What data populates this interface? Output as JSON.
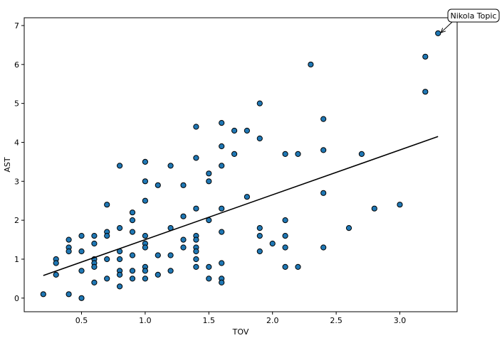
{
  "chart_data": {
    "type": "scatter",
    "title": "",
    "xlabel": "TOV",
    "ylabel": "AST",
    "xlim": [
      0.05,
      3.45
    ],
    "ylim": [
      -0.35,
      7.2
    ],
    "xticks": [
      0.5,
      1.0,
      1.5,
      2.0,
      2.5,
      3.0
    ],
    "xtick_labels": [
      "0.5",
      "1.0",
      "1.5",
      "2.0",
      "2.5",
      "3.0"
    ],
    "yticks": [
      0,
      1,
      2,
      3,
      4,
      5,
      6,
      7
    ],
    "ytick_labels": [
      "0",
      "1",
      "2",
      "3",
      "4",
      "5",
      "6",
      "7"
    ],
    "grid": false,
    "point_color": "#1f77b4",
    "point_edge_color": "#000000",
    "line_color": "#000000",
    "points": [
      [
        0.2,
        0.1
      ],
      [
        0.3,
        1.0
      ],
      [
        0.3,
        0.9
      ],
      [
        0.3,
        0.6
      ],
      [
        0.4,
        1.5
      ],
      [
        0.4,
        1.3
      ],
      [
        0.4,
        1.2
      ],
      [
        0.4,
        0.1
      ],
      [
        0.5,
        1.6
      ],
      [
        0.5,
        1.2
      ],
      [
        0.5,
        0.7
      ],
      [
        0.5,
        0.0
      ],
      [
        0.6,
        1.6
      ],
      [
        0.6,
        1.4
      ],
      [
        0.6,
        1.0
      ],
      [
        0.6,
        0.9
      ],
      [
        0.6,
        0.8
      ],
      [
        0.6,
        0.4
      ],
      [
        0.7,
        2.4
      ],
      [
        0.7,
        1.7
      ],
      [
        0.7,
        1.6
      ],
      [
        0.7,
        1.0
      ],
      [
        0.7,
        0.5
      ],
      [
        0.8,
        3.4
      ],
      [
        0.8,
        1.8
      ],
      [
        0.8,
        1.2
      ],
      [
        0.8,
        1.0
      ],
      [
        0.8,
        0.7
      ],
      [
        0.8,
        0.6
      ],
      [
        0.8,
        0.3
      ],
      [
        0.9,
        2.2
      ],
      [
        0.9,
        2.0
      ],
      [
        0.9,
        1.7
      ],
      [
        0.9,
        1.1
      ],
      [
        0.9,
        0.7
      ],
      [
        0.9,
        0.5
      ],
      [
        1.0,
        3.5
      ],
      [
        1.0,
        3.0
      ],
      [
        1.0,
        2.5
      ],
      [
        1.0,
        1.6
      ],
      [
        1.0,
        1.4
      ],
      [
        1.0,
        1.3
      ],
      [
        1.0,
        0.8
      ],
      [
        1.0,
        0.7
      ],
      [
        1.0,
        0.5
      ],
      [
        1.1,
        2.9
      ],
      [
        1.1,
        1.1
      ],
      [
        1.1,
        0.6
      ],
      [
        1.2,
        3.4
      ],
      [
        1.2,
        1.8
      ],
      [
        1.2,
        1.1
      ],
      [
        1.2,
        0.7
      ],
      [
        1.3,
        2.9
      ],
      [
        1.3,
        2.1
      ],
      [
        1.3,
        1.5
      ],
      [
        1.3,
        1.3
      ],
      [
        1.4,
        4.4
      ],
      [
        1.4,
        3.6
      ],
      [
        1.4,
        2.3
      ],
      [
        1.4,
        1.6
      ],
      [
        1.4,
        1.5
      ],
      [
        1.4,
        1.3
      ],
      [
        1.4,
        1.2
      ],
      [
        1.4,
        1.0
      ],
      [
        1.4,
        0.8
      ],
      [
        1.5,
        3.2
      ],
      [
        1.5,
        3.0
      ],
      [
        1.5,
        2.0
      ],
      [
        1.5,
        0.8
      ],
      [
        1.5,
        0.5
      ],
      [
        1.6,
        4.5
      ],
      [
        1.6,
        3.9
      ],
      [
        1.6,
        3.4
      ],
      [
        1.6,
        2.3
      ],
      [
        1.6,
        1.7
      ],
      [
        1.6,
        0.9
      ],
      [
        1.6,
        0.5
      ],
      [
        1.6,
        0.4
      ],
      [
        1.7,
        4.3
      ],
      [
        1.7,
        3.7
      ],
      [
        1.8,
        4.3
      ],
      [
        1.8,
        2.6
      ],
      [
        1.9,
        5.0
      ],
      [
        1.9,
        4.1
      ],
      [
        1.9,
        1.8
      ],
      [
        1.9,
        1.6
      ],
      [
        1.9,
        1.2
      ],
      [
        2.0,
        1.4
      ],
      [
        2.1,
        3.7
      ],
      [
        2.1,
        2.0
      ],
      [
        2.1,
        1.6
      ],
      [
        2.1,
        1.3
      ],
      [
        2.1,
        0.8
      ],
      [
        2.2,
        3.7
      ],
      [
        2.2,
        0.8
      ],
      [
        2.3,
        6.0
      ],
      [
        2.4,
        4.6
      ],
      [
        2.4,
        3.8
      ],
      [
        2.4,
        2.7
      ],
      [
        2.4,
        1.3
      ],
      [
        2.6,
        1.8
      ],
      [
        2.7,
        3.7
      ],
      [
        2.8,
        2.3
      ],
      [
        3.0,
        2.4
      ],
      [
        3.2,
        6.2
      ],
      [
        3.2,
        5.3
      ],
      [
        3.3,
        6.8
      ]
    ],
    "regression_line": {
      "x": [
        0.2,
        3.3
      ],
      "y": [
        0.58,
        4.15
      ]
    },
    "annotations": [
      {
        "text": "Nikola Topic",
        "x": 3.3,
        "y": 6.8
      }
    ]
  }
}
